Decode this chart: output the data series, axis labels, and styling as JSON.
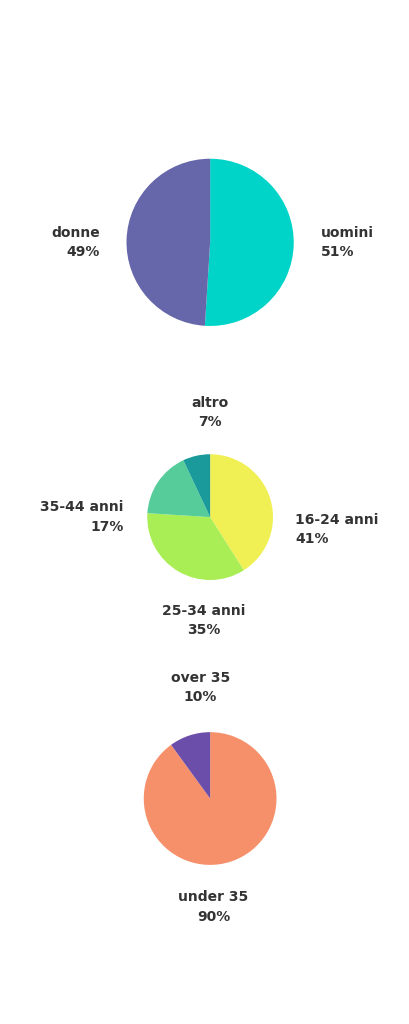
{
  "chart1": {
    "labels": [
      "uomini",
      "donne"
    ],
    "values": [
      51,
      49
    ],
    "colors": [
      "#00D4C8",
      "#6666AA"
    ],
    "startangle": 90
  },
  "chart2": {
    "labels": [
      "16-24 anni",
      "25-34 anni",
      "35-44 anni",
      "altro"
    ],
    "values": [
      41,
      35,
      17,
      7
    ],
    "colors": [
      "#F0F055",
      "#AAEE55",
      "#55CC99",
      "#1A9A9A"
    ],
    "startangle": 90
  },
  "chart3": {
    "labels": [
      "under 35",
      "over 35"
    ],
    "values": [
      90,
      10
    ],
    "colors": [
      "#F5906A",
      "#6B4DAA"
    ],
    "startangle": 90
  },
  "background_color": "#FFFFFF",
  "label_fontsize": 10,
  "label_color": "#333333"
}
